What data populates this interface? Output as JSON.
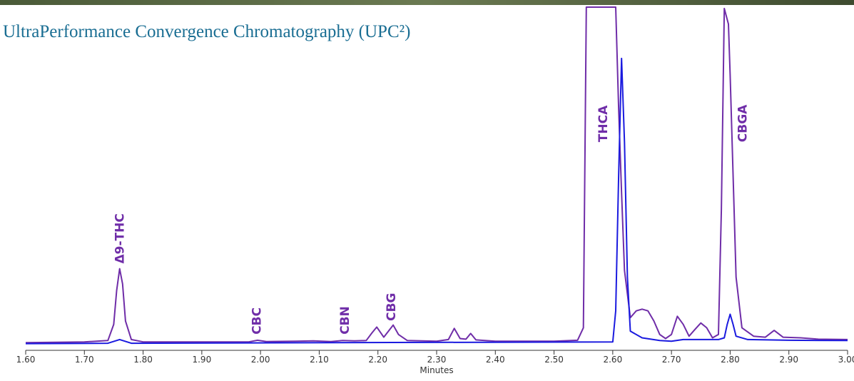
{
  "chart_data": {
    "type": "line",
    "title": "UltraPerformance Convergence Chromatography (UPC²)",
    "xlabel": "Minutes",
    "xlim": [
      1.6,
      3.0
    ],
    "ylim": [
      0,
      100
    ],
    "xticks": [
      {
        "value": 1.6,
        "label": "1.60"
      },
      {
        "value": 1.7,
        "label": "1.70"
      },
      {
        "value": 1.8,
        "label": "1.80"
      },
      {
        "value": 1.9,
        "label": "1.90"
      },
      {
        "value": 2.0,
        "label": "2.00"
      },
      {
        "value": 2.1,
        "label": "2.10"
      },
      {
        "value": 2.2,
        "label": "2.20"
      },
      {
        "value": 2.3,
        "label": "2.30"
      },
      {
        "value": 2.4,
        "label": "2.40"
      },
      {
        "value": 2.5,
        "label": "2.50"
      },
      {
        "value": 2.6,
        "label": "2.60"
      },
      {
        "value": 2.7,
        "label": "2.70"
      },
      {
        "value": 2.8,
        "label": "2.80"
      },
      {
        "value": 2.9,
        "label": "2.90"
      },
      {
        "value": 3.0,
        "label": "3.00"
      }
    ],
    "series": [
      {
        "color": "#6f2da8",
        "x": [
          1.6,
          1.7,
          1.74,
          1.75,
          1.755,
          1.76,
          1.765,
          1.77,
          1.78,
          1.8,
          1.98,
          1.995,
          2.01,
          2.06,
          2.09,
          2.12,
          2.14,
          2.16,
          2.18,
          2.19,
          2.198,
          2.21,
          2.218,
          2.226,
          2.235,
          2.25,
          2.3,
          2.32,
          2.33,
          2.34,
          2.35,
          2.358,
          2.367,
          2.4,
          2.5,
          2.54,
          2.55,
          2.555,
          2.605,
          2.61,
          2.615,
          2.62,
          2.63,
          2.64,
          2.65,
          2.66,
          2.67,
          2.68,
          2.69,
          2.7,
          2.71,
          2.72,
          2.73,
          2.74,
          2.75,
          2.76,
          2.77,
          2.78,
          2.785,
          2.79,
          2.797,
          2.8,
          2.81,
          2.82,
          2.84,
          2.86,
          2.875,
          2.89,
          2.92,
          2.95,
          3.0
        ],
        "values": [
          0.6,
          0.8,
          1.2,
          6,
          16,
          22.5,
          18,
          7,
          1.5,
          0.8,
          0.8,
          1.3,
          0.9,
          1.0,
          1.1,
          0.9,
          1.2,
          1.1,
          1.2,
          3.5,
          5.2,
          2.2,
          4,
          5.8,
          3,
          1.2,
          1.0,
          1.5,
          4.8,
          1.8,
          1.6,
          3.3,
          1.4,
          1.0,
          1.0,
          1.3,
          5,
          100,
          100,
          70,
          45,
          22,
          8,
          10,
          10.5,
          10,
          7,
          3,
          1.8,
          3,
          8.4,
          6,
          2.5,
          4.5,
          6.4,
          5,
          2,
          3,
          40,
          99.6,
          95,
          80,
          20,
          5,
          2.5,
          2.2,
          4.2,
          2.2,
          2.0,
          1.6,
          1.5
        ]
      },
      {
        "color": "#1a1adf",
        "x": [
          1.6,
          1.74,
          1.76,
          1.78,
          1.98,
          2.6,
          2.605,
          2.61,
          2.615,
          2.62,
          2.625,
          2.63,
          2.65,
          2.68,
          2.7,
          2.72,
          2.78,
          2.79,
          2.795,
          2.8,
          2.805,
          2.81,
          2.83,
          2.9,
          3.0
        ],
        "values": [
          0.3,
          0.4,
          1.5,
          0.4,
          0.5,
          0.8,
          10,
          50,
          84.8,
          60,
          20,
          4,
          2,
          1.2,
          1.0,
          1.5,
          1.5,
          2,
          6,
          9,
          6,
          2.5,
          1.5,
          1.3,
          1.2
        ]
      }
    ],
    "annotations": [
      {
        "text": "Δ9-THC",
        "x": 1.76,
        "y": 24
      },
      {
        "text": "CBC",
        "x": 1.993,
        "y": 3
      },
      {
        "text": "CBN",
        "x": 2.143,
        "y": 3
      },
      {
        "text": "CBG",
        "x": 2.222,
        "y": 7
      },
      {
        "text": "THCA",
        "x": 2.583,
        "y": 60
      },
      {
        "text": "CBGA",
        "x": 2.821,
        "y": 60
      }
    ]
  }
}
